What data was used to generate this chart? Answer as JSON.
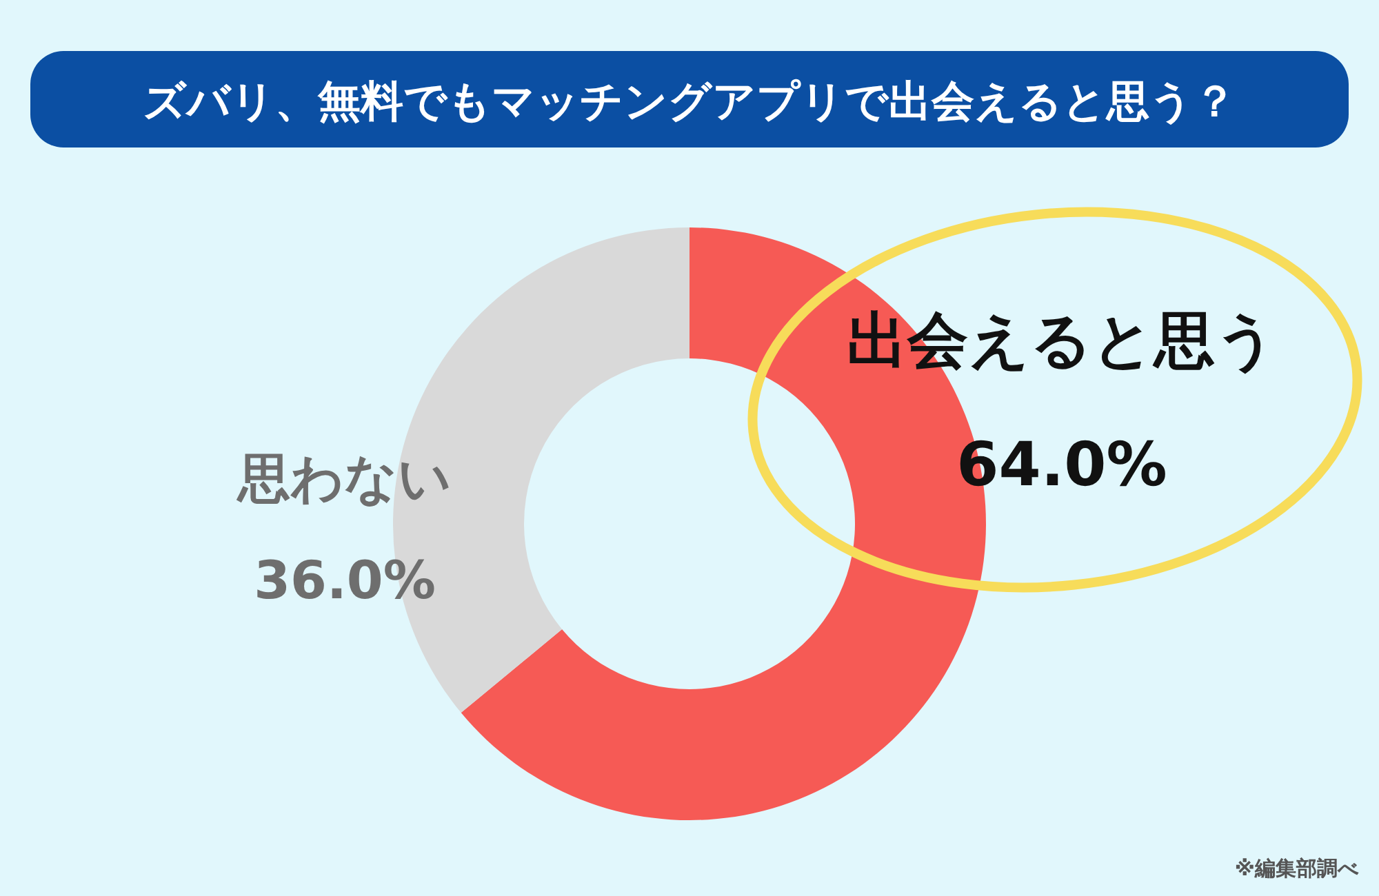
{
  "chart_data": {
    "type": "donut",
    "title": "ズバリ、無料でもマッチングアプリで出会えると思う？",
    "categories": [
      "出会えると思う",
      "思わない"
    ],
    "values": [
      64.0,
      36.0
    ],
    "value_labels": [
      "64.0%",
      "36.0%"
    ],
    "colors": [
      "#f65a55",
      "#d9d9d9"
    ],
    "annotations": [
      "※編集部調べ"
    ]
  }
}
